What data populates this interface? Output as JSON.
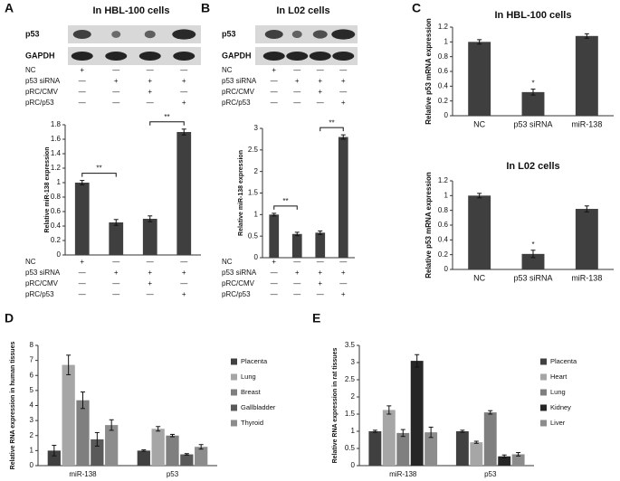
{
  "panel_labels": [
    "A",
    "B",
    "C",
    "D",
    "E"
  ],
  "blots": [
    {
      "title": "In HBL-100 cells",
      "bands": [
        "p53",
        "GAPDH"
      ]
    },
    {
      "title": "In L02 cells",
      "bands": [
        "p53",
        "GAPDH"
      ]
    }
  ],
  "condition_tables": [
    {
      "rows": [
        {
          "label": "NC",
          "marks": [
            "+",
            "—",
            "—",
            "—"
          ]
        },
        {
          "label": "p53 siRNA",
          "marks": [
            "—",
            "+",
            "+",
            "+"
          ]
        },
        {
          "label": "pRC/CMV",
          "marks": [
            "—",
            "—",
            "+",
            "—"
          ]
        },
        {
          "label": "pRC/p53",
          "marks": [
            "—",
            "—",
            "—",
            "+"
          ]
        }
      ]
    },
    {
      "rows": [
        {
          "label": "NC",
          "marks": [
            "+",
            "—",
            "—",
            "—"
          ]
        },
        {
          "label": "p53 siRNA",
          "marks": [
            "—",
            "+",
            "+",
            "+"
          ]
        },
        {
          "label": "pRC/CMV",
          "marks": [
            "—",
            "—",
            "+",
            "—"
          ]
        },
        {
          "label": "pRC/p53",
          "marks": [
            "—",
            "—",
            "—",
            "+"
          ]
        }
      ]
    },
    {
      "rows": [
        {
          "label": "NC",
          "marks": [
            "+",
            "—",
            "—",
            "—"
          ]
        },
        {
          "label": "p53 siRNA",
          "marks": [
            "—",
            "+",
            "+",
            "+"
          ]
        },
        {
          "label": "pRC/CMV",
          "marks": [
            "—",
            "—",
            "+",
            "—"
          ]
        },
        {
          "label": "pRC/p53",
          "marks": [
            "—",
            "—",
            "—",
            "+"
          ]
        }
      ]
    },
    {
      "rows": [
        {
          "label": "NC",
          "marks": [
            "+",
            "—",
            "—",
            "—"
          ]
        },
        {
          "label": "p53 siRNA",
          "marks": [
            "—",
            "+",
            "+",
            "+"
          ]
        },
        {
          "label": "pRC/CMV",
          "marks": [
            "—",
            "—",
            "+",
            "—"
          ]
        },
        {
          "label": "pRC/p53",
          "marks": [
            "—",
            "—",
            "—",
            "+"
          ]
        }
      ]
    }
  ],
  "chart_data": [
    {
      "type": "bar",
      "y_label": "Relative miR-138 expression",
      "values": [
        1.0,
        0.45,
        0.5,
        1.7
      ],
      "errors": [
        0.03,
        0.04,
        0.04,
        0.04
      ],
      "color": "#3f3f3f",
      "ylim": [
        0,
        1.8
      ],
      "yticks": [
        0,
        0.2,
        0.4,
        0.6,
        0.8,
        1,
        1.2,
        1.4,
        1.6,
        1.8
      ],
      "annotations": [
        "**",
        "**"
      ]
    },
    {
      "type": "bar",
      "y_label": "Relative miR-138 expression",
      "values": [
        1.0,
        0.55,
        0.58,
        2.8
      ],
      "errors": [
        0.03,
        0.04,
        0.04,
        0.05
      ],
      "color": "#3f3f3f",
      "ylim": [
        0,
        3
      ],
      "yticks": [
        0,
        0.5,
        1,
        1.5,
        2,
        2.5,
        3
      ],
      "annotations": [
        "**",
        "**"
      ]
    },
    {
      "type": "bar",
      "title": "In HBL-100 cells",
      "y_label": "Relative p53 mRNA expression",
      "categories": [
        "NC",
        "p53 siRNA",
        "miR-138"
      ],
      "values": [
        1.0,
        0.32,
        1.08
      ],
      "errors": [
        0.03,
        0.04,
        0.03
      ],
      "color": "#3f3f3f",
      "ylim": [
        0,
        1.2
      ],
      "yticks": [
        0,
        0.2,
        0.4,
        0.6,
        0.8,
        1,
        1.2
      ],
      "annotations": [
        "*"
      ]
    },
    {
      "type": "bar",
      "title": "In L02 cells",
      "y_label": "Relative p53 mRNA expression",
      "categories": [
        "NC",
        "p53 siRNA",
        "miR-138"
      ],
      "values": [
        1.0,
        0.21,
        0.82
      ],
      "errors": [
        0.03,
        0.05,
        0.04
      ],
      "color": "#3f3f3f",
      "ylim": [
        0,
        1.2
      ],
      "yticks": [
        0,
        0.2,
        0.4,
        0.6,
        0.8,
        1,
        1.2
      ],
      "annotations": [
        "*"
      ]
    },
    {
      "type": "grouped_bar",
      "y_label": "Relative RNA expression in human tissues",
      "categories": [
        "miR-138",
        "p53"
      ],
      "ylim": [
        0,
        8
      ],
      "yticks": [
        0,
        1,
        2,
        3,
        4,
        5,
        6,
        7,
        8
      ],
      "legend": "right",
      "series": [
        {
          "name": "Placenta",
          "color": "#404040",
          "values": [
            1.0,
            1.0
          ],
          "errors": [
            0.35,
            0.05
          ]
        },
        {
          "name": "Lung",
          "color": "#a6a6a6",
          "values": [
            6.7,
            2.45
          ],
          "errors": [
            0.65,
            0.15
          ]
        },
        {
          "name": "Breast",
          "color": "#7f7f7f",
          "values": [
            4.35,
            2.0
          ],
          "errors": [
            0.55,
            0.08
          ]
        },
        {
          "name": "Gallbladder",
          "color": "#595959",
          "values": [
            1.75,
            0.75
          ],
          "errors": [
            0.45,
            0.05
          ]
        },
        {
          "name": "Thyroid",
          "color": "#8c8c8c",
          "values": [
            2.7,
            1.25
          ],
          "errors": [
            0.35,
            0.15
          ]
        }
      ]
    },
    {
      "type": "grouped_bar",
      "y_label": "Relative RNA expression in rat tissues",
      "categories": [
        "miR-138",
        "p53"
      ],
      "ylim": [
        0,
        3.5
      ],
      "yticks": [
        0,
        0.5,
        1,
        1.5,
        2,
        2.5,
        3,
        3.5
      ],
      "legend": "right",
      "series": [
        {
          "name": "Placenta",
          "color": "#404040",
          "values": [
            1.0,
            1.0
          ],
          "errors": [
            0.03,
            0.03
          ]
        },
        {
          "name": "Heart",
          "color": "#a6a6a6",
          "values": [
            1.62,
            0.68
          ],
          "errors": [
            0.12,
            0.03
          ]
        },
        {
          "name": "Lung",
          "color": "#7f7f7f",
          "values": [
            0.95,
            1.55
          ],
          "errors": [
            0.1,
            0.05
          ]
        },
        {
          "name": "Kidney",
          "color": "#262626",
          "values": [
            3.05,
            0.27
          ],
          "errors": [
            0.18,
            0.04
          ]
        },
        {
          "name": "Liver",
          "color": "#8c8c8c",
          "values": [
            0.97,
            0.33
          ],
          "errors": [
            0.15,
            0.05
          ]
        }
      ]
    }
  ]
}
